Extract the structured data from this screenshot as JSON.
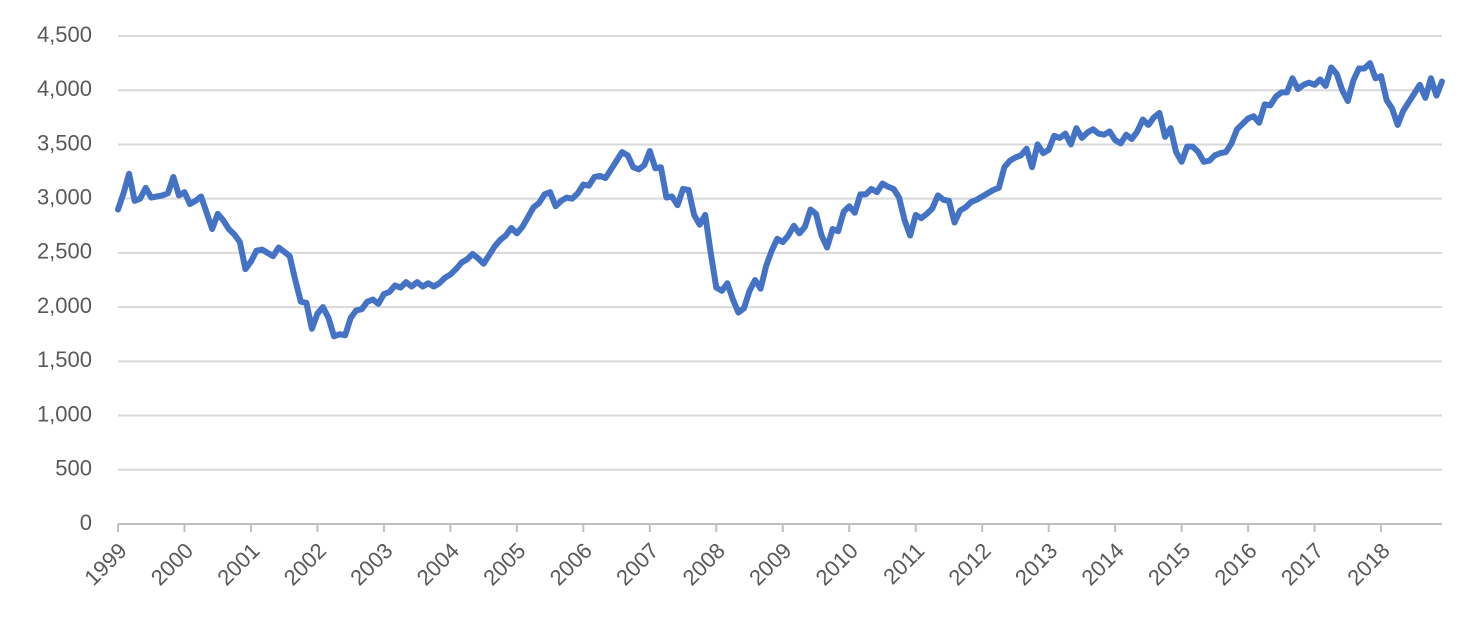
{
  "chart_data": {
    "type": "line",
    "categories": [
      "1999",
      null,
      null,
      null,
      null,
      null,
      null,
      null,
      null,
      null,
      null,
      null,
      "2000",
      null,
      null,
      null,
      null,
      null,
      null,
      null,
      null,
      null,
      null,
      null,
      "2001",
      null,
      null,
      null,
      null,
      null,
      null,
      null,
      null,
      null,
      null,
      null,
      "2002",
      null,
      null,
      null,
      null,
      null,
      null,
      null,
      null,
      null,
      null,
      null,
      "2003",
      null,
      null,
      null,
      null,
      null,
      null,
      null,
      null,
      null,
      null,
      null,
      "2004",
      null,
      null,
      null,
      null,
      null,
      null,
      null,
      null,
      null,
      null,
      null,
      "2005",
      null,
      null,
      null,
      null,
      null,
      null,
      null,
      null,
      null,
      null,
      null,
      "2006",
      null,
      null,
      null,
      null,
      null,
      null,
      null,
      null,
      null,
      null,
      null,
      "2007",
      null,
      null,
      null,
      null,
      null,
      null,
      null,
      null,
      null,
      null,
      null,
      "2008",
      null,
      null,
      null,
      null,
      null,
      null,
      null,
      null,
      null,
      null,
      null,
      "2009",
      null,
      null,
      null,
      null,
      null,
      null,
      null,
      null,
      null,
      null,
      null,
      "2010",
      null,
      null,
      null,
      null,
      null,
      null,
      null,
      null,
      null,
      null,
      null,
      "2011",
      null,
      null,
      null,
      null,
      null,
      null,
      null,
      null,
      null,
      null,
      null,
      "2012",
      null,
      null,
      null,
      null,
      null,
      null,
      null,
      null,
      null,
      null,
      null,
      "2013",
      null,
      null,
      null,
      null,
      null,
      null,
      null,
      null,
      null,
      null,
      null,
      "2014",
      null,
      null,
      null,
      null,
      null,
      null,
      null,
      null,
      null,
      null,
      null,
      "2015",
      null,
      null,
      null,
      null,
      null,
      null,
      null,
      null,
      null,
      null,
      null,
      "2016",
      null,
      null,
      null,
      null,
      null,
      null,
      null,
      null,
      null,
      null,
      null,
      "2017",
      null,
      null,
      null,
      null,
      null,
      null,
      null,
      null,
      null,
      null,
      null,
      "2018",
      null,
      null,
      null,
      null,
      null,
      null,
      null,
      null,
      null,
      null,
      null
    ],
    "color": "#4472c4",
    "values": [
      2900,
      3050,
      3230,
      2980,
      3000,
      3100,
      3010,
      3020,
      3030,
      3050,
      3200,
      3030,
      3060,
      2950,
      2980,
      3020,
      2870,
      2720,
      2860,
      2800,
      2720,
      2670,
      2600,
      2350,
      2420,
      2520,
      2530,
      2500,
      2470,
      2550,
      2510,
      2470,
      2250,
      2050,
      2040,
      1800,
      1940,
      2000,
      1900,
      1730,
      1750,
      1740,
      1900,
      1970,
      1980,
      2050,
      2070,
      2030,
      2120,
      2140,
      2200,
      2180,
      2230,
      2190,
      2230,
      2190,
      2220,
      2190,
      2220,
      2270,
      2300,
      2350,
      2410,
      2440,
      2490,
      2450,
      2400,
      2480,
      2560,
      2620,
      2660,
      2730,
      2680,
      2740,
      2830,
      2920,
      2960,
      3040,
      3060,
      2930,
      2980,
      3010,
      3000,
      3050,
      3130,
      3120,
      3200,
      3210,
      3190,
      3270,
      3350,
      3430,
      3400,
      3290,
      3270,
      3310,
      3440,
      3280,
      3290,
      3010,
      3020,
      2940,
      3090,
      3080,
      2850,
      2760,
      2850,
      2500,
      2180,
      2150,
      2220,
      2070,
      1950,
      1990,
      2150,
      2250,
      2170,
      2380,
      2520,
      2630,
      2600,
      2660,
      2750,
      2680,
      2740,
      2900,
      2860,
      2660,
      2550,
      2720,
      2700,
      2880,
      2930,
      2870,
      3040,
      3040,
      3090,
      3060,
      3140,
      3110,
      3090,
      3010,
      2800,
      2660,
      2850,
      2820,
      2860,
      2910,
      3030,
      2990,
      2980,
      2780,
      2890,
      2920,
      2970,
      2990,
      3020,
      3050,
      3080,
      3100,
      3290,
      3350,
      3380,
      3400,
      3460,
      3290,
      3500,
      3420,
      3450,
      3580,
      3560,
      3600,
      3500,
      3650,
      3560,
      3610,
      3640,
      3600,
      3590,
      3620,
      3540,
      3510,
      3590,
      3550,
      3620,
      3730,
      3680,
      3750,
      3790,
      3570,
      3650,
      3430,
      3340,
      3480,
      3480,
      3430,
      3340,
      3350,
      3400,
      3420,
      3430,
      3510,
      3640,
      3690,
      3740,
      3760,
      3700,
      3870,
      3860,
      3940,
      3980,
      3980,
      4110,
      4010,
      4050,
      4070,
      4050,
      4100,
      4040,
      4210,
      4150,
      4000,
      3900,
      4090,
      4200,
      4200,
      4250,
      4110,
      4130,
      3910,
      3830,
      3680,
      3810,
      3890,
      3970,
      4050,
      3930,
      4110,
      3950,
      4080
    ],
    "ylim": [
      0,
      4500
    ],
    "yticks": [
      0,
      500,
      {
        "value": 1000,
        "label": "1,000"
      },
      {
        "value": 1500,
        "label": "1,500"
      },
      {
        "value": 2000,
        "label": "2,000"
      },
      {
        "value": 2500,
        "label": "2,500"
      },
      {
        "value": 3000,
        "label": "3,000"
      },
      {
        "value": 3500,
        "label": "3,500"
      },
      {
        "value": 4000,
        "label": "4,000"
      },
      {
        "value": 4500,
        "label": "4,500"
      }
    ],
    "grid": true
  }
}
